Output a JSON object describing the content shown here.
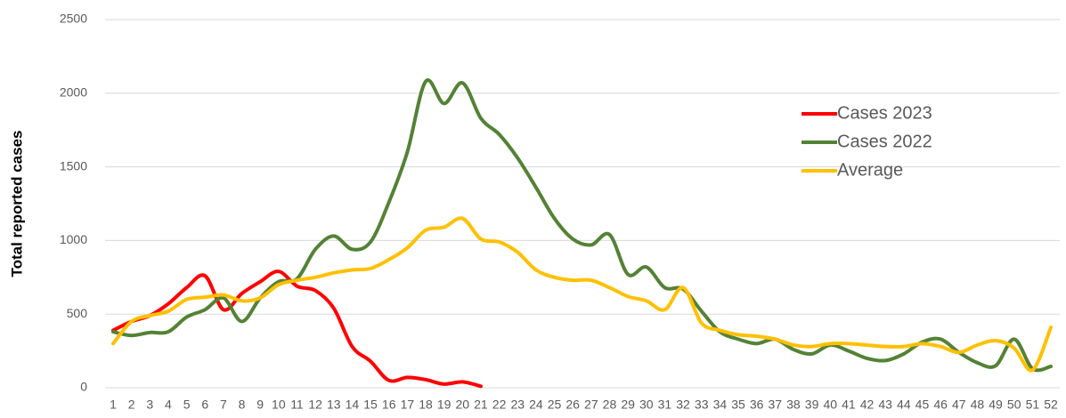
{
  "chart_data": {
    "type": "line",
    "y_label": "Total reported cases",
    "categories": [
      "1",
      "2",
      "3",
      "4",
      "5",
      "6",
      "7",
      "8",
      "9",
      "10",
      "11",
      "12",
      "13",
      "14",
      "15",
      "16",
      "17",
      "18",
      "19",
      "20",
      "21",
      "22",
      "23",
      "24",
      "25",
      "26",
      "27",
      "28",
      "29",
      "30",
      "31",
      "32",
      "33",
      "34",
      "35",
      "36",
      "37",
      "38",
      "39",
      "40",
      "41",
      "42",
      "43",
      "44",
      "45",
      "46",
      "47",
      "48",
      "49",
      "50",
      "51",
      "52"
    ],
    "series": [
      {
        "name": "Cases 2023",
        "color": "#ff0000",
        "values": [
          390,
          450,
          490,
          570,
          680,
          760,
          530,
          640,
          720,
          790,
          690,
          660,
          540,
          280,
          180,
          50,
          70,
          55,
          25,
          40,
          10,
          null,
          null,
          null,
          null,
          null,
          null,
          null,
          null,
          null,
          null,
          null,
          null,
          null,
          null,
          null,
          null,
          null,
          null,
          null,
          null,
          null,
          null,
          null,
          null,
          null,
          null,
          null,
          null,
          null,
          null,
          null
        ]
      },
      {
        "name": "Cases 2022",
        "color": "#548235",
        "values": [
          380,
          355,
          375,
          380,
          480,
          530,
          610,
          450,
          610,
          720,
          740,
          940,
          1030,
          940,
          990,
          1260,
          1600,
          2080,
          1930,
          2070,
          1830,
          1720,
          1560,
          1360,
          1150,
          1010,
          970,
          1040,
          770,
          820,
          680,
          670,
          520,
          380,
          330,
          300,
          330,
          260,
          230,
          290,
          250,
          200,
          185,
          230,
          310,
          330,
          240,
          170,
          150,
          330,
          130,
          145
        ]
      },
      {
        "name": "Average",
        "color": "#ffc000",
        "values": [
          300,
          450,
          490,
          520,
          600,
          615,
          630,
          590,
          610,
          700,
          730,
          750,
          780,
          800,
          810,
          870,
          950,
          1070,
          1090,
          1150,
          1010,
          990,
          920,
          800,
          750,
          730,
          730,
          680,
          620,
          590,
          530,
          680,
          440,
          390,
          360,
          350,
          330,
          290,
          280,
          300,
          300,
          290,
          280,
          280,
          300,
          280,
          240,
          290,
          320,
          270,
          120,
          410
        ]
      }
    ],
    "ylim": [
      0,
      2500
    ],
    "yticks": [
      0,
      500,
      1000,
      1500,
      2000,
      2500
    ],
    "grid": true,
    "legend": "right"
  }
}
